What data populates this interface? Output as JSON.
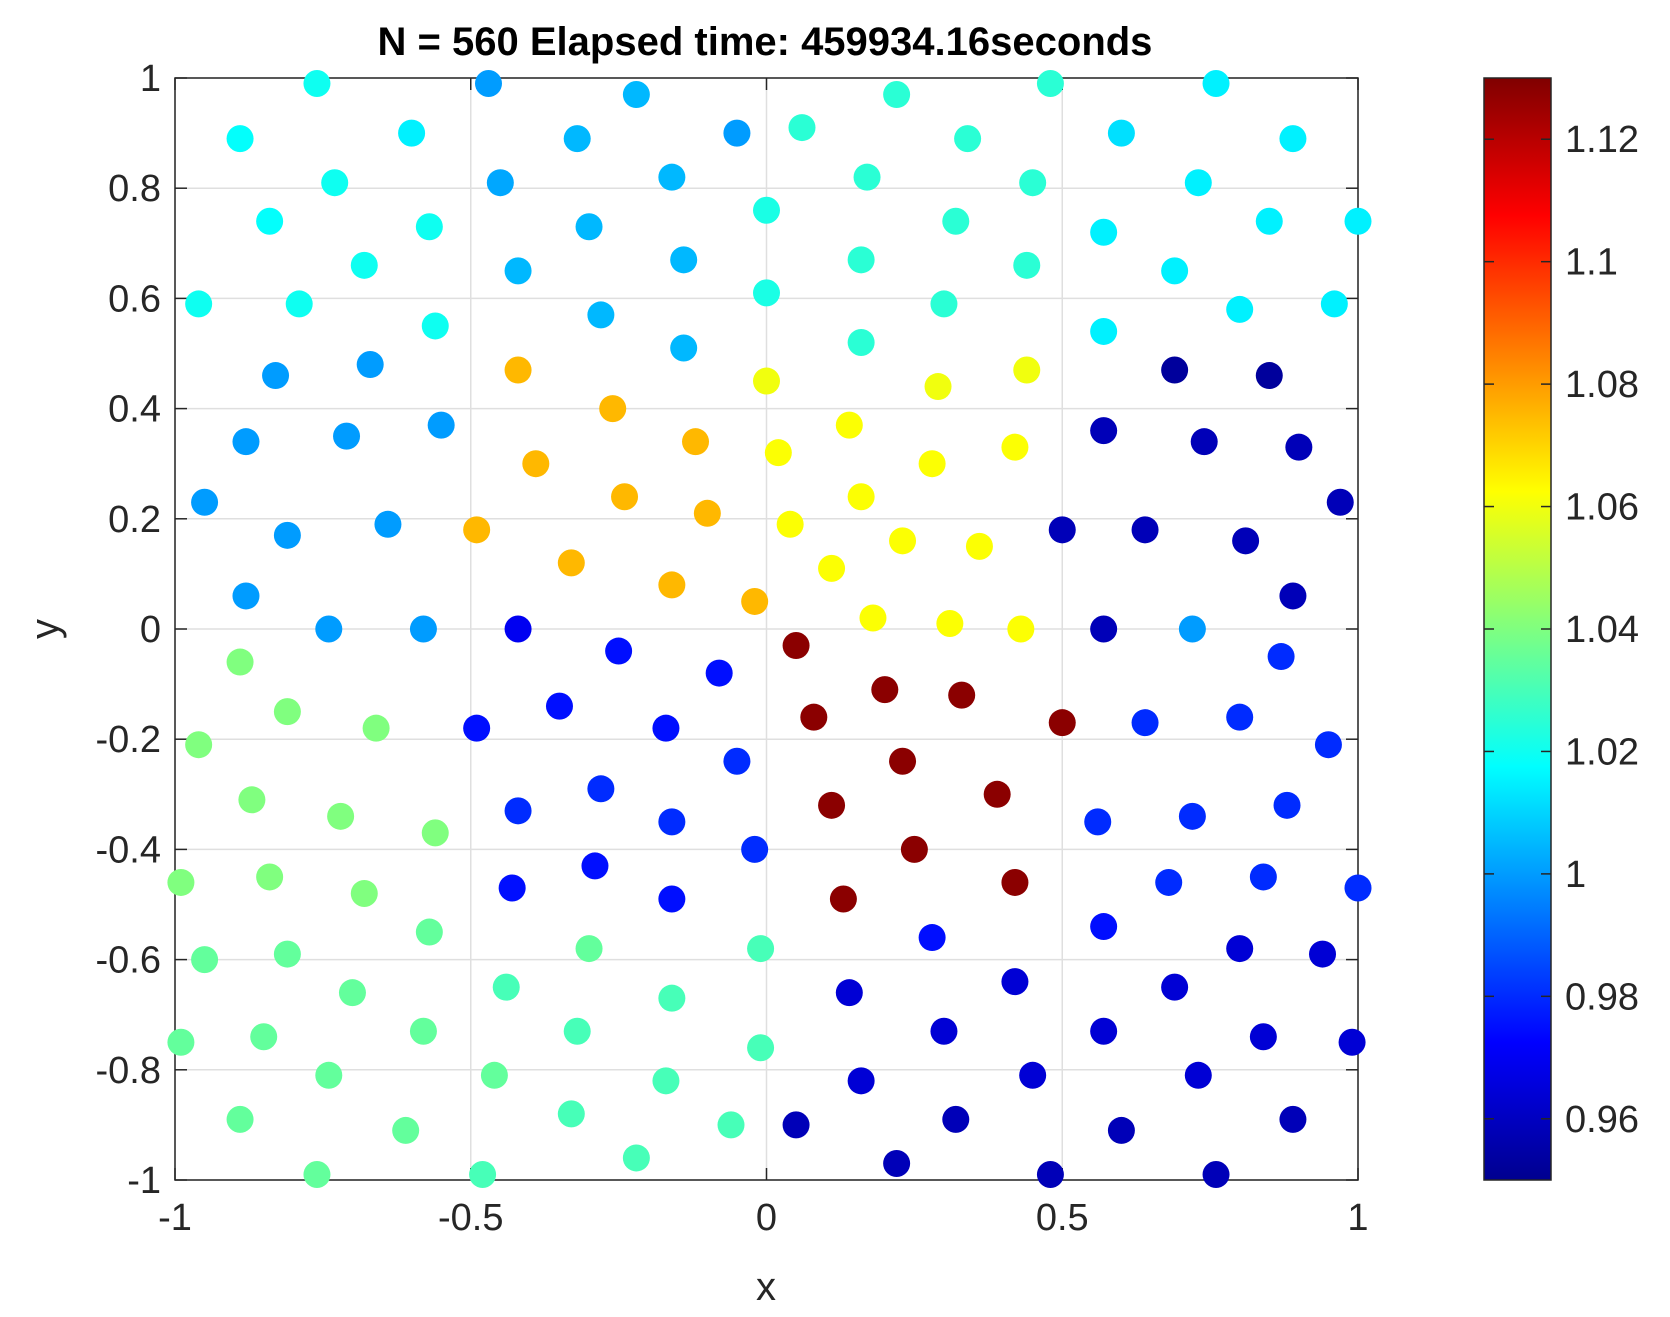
{
  "chart_data": {
    "type": "scatter",
    "title": "N = 560 Elapsed time: 459934.16seconds",
    "xlabel": "x",
    "ylabel": "y",
    "xlim": [
      -1,
      1
    ],
    "ylim": [
      -1,
      1
    ],
    "xticks": [
      "-1",
      "-0.5",
      "0",
      "0.5",
      "1"
    ],
    "yticks": [
      "-1",
      "-0.8",
      "-0.6",
      "-0.4",
      "-0.2",
      "0",
      "0.2",
      "0.4",
      "0.6",
      "0.8",
      "1"
    ],
    "grid": true,
    "colormap": "jet",
    "colorbar": {
      "range": [
        0.95,
        1.13
      ],
      "ticks": [
        "0.96",
        "0.98",
        "1",
        "1.02",
        "1.04",
        "1.06",
        "1.08",
        "1.1",
        "1.12"
      ]
    },
    "points": [
      {
        "x": -0.76,
        "y": 0.99,
        "c": 1.02
      },
      {
        "x": -0.47,
        "y": 0.99,
        "c": 1.0
      },
      {
        "x": -0.22,
        "y": 0.97,
        "c": 1.005
      },
      {
        "x": 0.22,
        "y": 0.97,
        "c": 1.025
      },
      {
        "x": 0.48,
        "y": 0.99,
        "c": 1.025
      },
      {
        "x": 0.76,
        "y": 0.99,
        "c": 1.015
      },
      {
        "x": -0.89,
        "y": 0.89,
        "c": 1.018
      },
      {
        "x": -0.6,
        "y": 0.9,
        "c": 1.015
      },
      {
        "x": -0.32,
        "y": 0.89,
        "c": 1.005
      },
      {
        "x": -0.05,
        "y": 0.9,
        "c": 1.0
      },
      {
        "x": 0.06,
        "y": 0.91,
        "c": 1.025
      },
      {
        "x": 0.34,
        "y": 0.89,
        "c": 1.025
      },
      {
        "x": 0.6,
        "y": 0.9,
        "c": 1.012
      },
      {
        "x": 0.89,
        "y": 0.89,
        "c": 1.015
      },
      {
        "x": -0.73,
        "y": 0.81,
        "c": 1.02
      },
      {
        "x": -0.45,
        "y": 0.81,
        "c": 1.002
      },
      {
        "x": -0.16,
        "y": 0.82,
        "c": 1.005
      },
      {
        "x": 0.17,
        "y": 0.82,
        "c": 1.025
      },
      {
        "x": 0.45,
        "y": 0.81,
        "c": 1.025
      },
      {
        "x": 0.73,
        "y": 0.81,
        "c": 1.015
      },
      {
        "x": -0.84,
        "y": 0.74,
        "c": 1.018
      },
      {
        "x": -0.57,
        "y": 0.73,
        "c": 1.02
      },
      {
        "x": -0.3,
        "y": 0.73,
        "c": 1.005
      },
      {
        "x": 0.0,
        "y": 0.76,
        "c": 1.022
      },
      {
        "x": 0.32,
        "y": 0.74,
        "c": 1.025
      },
      {
        "x": 0.57,
        "y": 0.72,
        "c": 1.015
      },
      {
        "x": 0.85,
        "y": 0.74,
        "c": 1.015
      },
      {
        "x": 1.0,
        "y": 0.74,
        "c": 1.015
      },
      {
        "x": -0.68,
        "y": 0.66,
        "c": 1.02
      },
      {
        "x": -0.42,
        "y": 0.65,
        "c": 1.005
      },
      {
        "x": -0.14,
        "y": 0.67,
        "c": 1.005
      },
      {
        "x": 0.16,
        "y": 0.67,
        "c": 1.025
      },
      {
        "x": 0.44,
        "y": 0.66,
        "c": 1.025
      },
      {
        "x": 0.69,
        "y": 0.65,
        "c": 1.015
      },
      {
        "x": -0.96,
        "y": 0.59,
        "c": 1.02
      },
      {
        "x": -0.79,
        "y": 0.59,
        "c": 1.02
      },
      {
        "x": -0.56,
        "y": 0.55,
        "c": 1.02
      },
      {
        "x": -0.28,
        "y": 0.57,
        "c": 1.005
      },
      {
        "x": 0.0,
        "y": 0.61,
        "c": 1.022
      },
      {
        "x": 0.3,
        "y": 0.59,
        "c": 1.025
      },
      {
        "x": 0.8,
        "y": 0.58,
        "c": 1.015
      },
      {
        "x": 0.96,
        "y": 0.59,
        "c": 1.015
      },
      {
        "x": 0.57,
        "y": 0.54,
        "c": 1.015
      },
      {
        "x": -0.14,
        "y": 0.51,
        "c": 1.005
      },
      {
        "x": 0.16,
        "y": 0.52,
        "c": 1.025
      },
      {
        "x": -0.83,
        "y": 0.46,
        "c": 1.0
      },
      {
        "x": -0.67,
        "y": 0.48,
        "c": 1.0
      },
      {
        "x": -0.42,
        "y": 0.47,
        "c": 1.075
      },
      {
        "x": 0.0,
        "y": 0.45,
        "c": 1.06
      },
      {
        "x": 0.29,
        "y": 0.44,
        "c": 1.06
      },
      {
        "x": 0.44,
        "y": 0.47,
        "c": 1.06
      },
      {
        "x": 0.69,
        "y": 0.47,
        "c": 0.955
      },
      {
        "x": 0.85,
        "y": 0.46,
        "c": 0.955
      },
      {
        "x": -0.26,
        "y": 0.4,
        "c": 1.075
      },
      {
        "x": 0.14,
        "y": 0.37,
        "c": 1.062
      },
      {
        "x": -0.88,
        "y": 0.34,
        "c": 1.0
      },
      {
        "x": -0.71,
        "y": 0.35,
        "c": 1.0
      },
      {
        "x": -0.55,
        "y": 0.37,
        "c": 1.0
      },
      {
        "x": -0.12,
        "y": 0.34,
        "c": 1.075
      },
      {
        "x": 0.02,
        "y": 0.32,
        "c": 1.062
      },
      {
        "x": 0.42,
        "y": 0.33,
        "c": 1.062
      },
      {
        "x": 0.57,
        "y": 0.36,
        "c": 0.96
      },
      {
        "x": 0.74,
        "y": 0.34,
        "c": 0.96
      },
      {
        "x": 0.9,
        "y": 0.33,
        "c": 0.96
      },
      {
        "x": -0.39,
        "y": 0.3,
        "c": 1.075
      },
      {
        "x": 0.28,
        "y": 0.3,
        "c": 1.062
      },
      {
        "x": -0.95,
        "y": 0.23,
        "c": 1.0
      },
      {
        "x": -0.81,
        "y": 0.17,
        "c": 1.0
      },
      {
        "x": -0.64,
        "y": 0.19,
        "c": 1.0
      },
      {
        "x": -0.24,
        "y": 0.24,
        "c": 1.075
      },
      {
        "x": -0.1,
        "y": 0.21,
        "c": 1.075
      },
      {
        "x": 0.16,
        "y": 0.24,
        "c": 1.062
      },
      {
        "x": 0.97,
        "y": 0.23,
        "c": 0.96
      },
      {
        "x": -0.49,
        "y": 0.18,
        "c": 1.075
      },
      {
        "x": 0.04,
        "y": 0.19,
        "c": 1.062
      },
      {
        "x": 0.5,
        "y": 0.18,
        "c": 0.96
      },
      {
        "x": 0.64,
        "y": 0.18,
        "c": 0.96
      },
      {
        "x": 0.81,
        "y": 0.16,
        "c": 0.96
      },
      {
        "x": 0.23,
        "y": 0.16,
        "c": 1.062
      },
      {
        "x": 0.36,
        "y": 0.15,
        "c": 1.062
      },
      {
        "x": -0.33,
        "y": 0.12,
        "c": 1.075
      },
      {
        "x": 0.11,
        "y": 0.11,
        "c": 1.062
      },
      {
        "x": -0.16,
        "y": 0.08,
        "c": 1.075
      },
      {
        "x": -0.88,
        "y": 0.06,
        "c": 1.0
      },
      {
        "x": -0.02,
        "y": 0.05,
        "c": 1.075
      },
      {
        "x": 0.89,
        "y": 0.06,
        "c": 0.96
      },
      {
        "x": 0.18,
        "y": 0.02,
        "c": 1.062
      },
      {
        "x": 0.31,
        "y": 0.01,
        "c": 1.062
      },
      {
        "x": 0.43,
        "y": 0.0,
        "c": 1.062
      },
      {
        "x": -0.74,
        "y": 0.0,
        "c": 1.0
      },
      {
        "x": -0.58,
        "y": 0.0,
        "c": 1.0
      },
      {
        "x": -0.42,
        "y": 0.0,
        "c": 0.97
      },
      {
        "x": 0.57,
        "y": 0.0,
        "c": 0.96
      },
      {
        "x": 0.72,
        "y": 0.0,
        "c": 1.0
      },
      {
        "x": 0.05,
        "y": -0.03,
        "c": 1.128
      },
      {
        "x": -0.25,
        "y": -0.04,
        "c": 0.975
      },
      {
        "x": -0.89,
        "y": -0.06,
        "c": 1.04
      },
      {
        "x": 0.87,
        "y": -0.05,
        "c": 0.98
      },
      {
        "x": -0.08,
        "y": -0.08,
        "c": 0.975
      },
      {
        "x": 0.2,
        "y": -0.11,
        "c": 1.128
      },
      {
        "x": 0.33,
        "y": -0.12,
        "c": 1.128
      },
      {
        "x": -0.35,
        "y": -0.14,
        "c": 0.975
      },
      {
        "x": -0.81,
        "y": -0.15,
        "c": 1.04
      },
      {
        "x": 0.08,
        "y": -0.16,
        "c": 1.128
      },
      {
        "x": 0.64,
        "y": -0.17,
        "c": 0.98
      },
      {
        "x": 0.8,
        "y": -0.16,
        "c": 0.98
      },
      {
        "x": -0.17,
        "y": -0.18,
        "c": 0.975
      },
      {
        "x": -0.66,
        "y": -0.18,
        "c": 1.04
      },
      {
        "x": -0.49,
        "y": -0.18,
        "c": 0.975
      },
      {
        "x": 0.5,
        "y": -0.17,
        "c": 1.128
      },
      {
        "x": -0.96,
        "y": -0.21,
        "c": 1.04
      },
      {
        "x": 0.95,
        "y": -0.21,
        "c": 0.98
      },
      {
        "x": -0.05,
        "y": -0.24,
        "c": 0.98
      },
      {
        "x": 0.23,
        "y": -0.24,
        "c": 1.128
      },
      {
        "x": -0.28,
        "y": -0.29,
        "c": 0.98
      },
      {
        "x": 0.39,
        "y": -0.3,
        "c": 1.128
      },
      {
        "x": -0.87,
        "y": -0.31,
        "c": 1.04
      },
      {
        "x": 0.11,
        "y": -0.32,
        "c": 1.128
      },
      {
        "x": -0.42,
        "y": -0.33,
        "c": 0.98
      },
      {
        "x": 0.72,
        "y": -0.34,
        "c": 0.98
      },
      {
        "x": 0.88,
        "y": -0.32,
        "c": 0.98
      },
      {
        "x": -0.72,
        "y": -0.34,
        "c": 1.04
      },
      {
        "x": -0.16,
        "y": -0.35,
        "c": 0.98
      },
      {
        "x": 0.56,
        "y": -0.35,
        "c": 0.98
      },
      {
        "x": -0.56,
        "y": -0.37,
        "c": 1.04
      },
      {
        "x": 0.25,
        "y": -0.4,
        "c": 1.128
      },
      {
        "x": -0.02,
        "y": -0.4,
        "c": 0.98
      },
      {
        "x": -0.29,
        "y": -0.43,
        "c": 0.975
      },
      {
        "x": -0.84,
        "y": -0.45,
        "c": 1.04
      },
      {
        "x": 0.42,
        "y": -0.46,
        "c": 1.128
      },
      {
        "x": 0.84,
        "y": -0.45,
        "c": 0.98
      },
      {
        "x": -0.99,
        "y": -0.46,
        "c": 1.04
      },
      {
        "x": 0.68,
        "y": -0.46,
        "c": 0.98
      },
      {
        "x": 1.0,
        "y": -0.47,
        "c": 0.98
      },
      {
        "x": -0.43,
        "y": -0.47,
        "c": 0.975
      },
      {
        "x": -0.68,
        "y": -0.48,
        "c": 1.04
      },
      {
        "x": 0.13,
        "y": -0.49,
        "c": 1.128
      },
      {
        "x": -0.16,
        "y": -0.49,
        "c": 0.975
      },
      {
        "x": 0.57,
        "y": -0.54,
        "c": 0.975
      },
      {
        "x": -0.57,
        "y": -0.55,
        "c": 1.035
      },
      {
        "x": 0.28,
        "y": -0.56,
        "c": 0.975
      },
      {
        "x": 0.8,
        "y": -0.58,
        "c": 0.965
      },
      {
        "x": -0.3,
        "y": -0.58,
        "c": 1.035
      },
      {
        "x": -0.81,
        "y": -0.59,
        "c": 1.035
      },
      {
        "x": -0.01,
        "y": -0.58,
        "c": 1.03
      },
      {
        "x": -0.95,
        "y": -0.6,
        "c": 1.035
      },
      {
        "x": 0.94,
        "y": -0.59,
        "c": 0.965
      },
      {
        "x": 0.42,
        "y": -0.64,
        "c": 0.965
      },
      {
        "x": 0.69,
        "y": -0.65,
        "c": 0.965
      },
      {
        "x": -0.44,
        "y": -0.65,
        "c": 1.03
      },
      {
        "x": 0.14,
        "y": -0.66,
        "c": 0.965
      },
      {
        "x": -0.7,
        "y": -0.66,
        "c": 1.035
      },
      {
        "x": -0.16,
        "y": -0.67,
        "c": 1.03
      },
      {
        "x": 0.57,
        "y": -0.73,
        "c": 0.965
      },
      {
        "x": -0.58,
        "y": -0.73,
        "c": 1.035
      },
      {
        "x": 0.3,
        "y": -0.73,
        "c": 0.965
      },
      {
        "x": -0.32,
        "y": -0.73,
        "c": 1.03
      },
      {
        "x": 0.84,
        "y": -0.74,
        "c": 0.965
      },
      {
        "x": -0.85,
        "y": -0.74,
        "c": 1.035
      },
      {
        "x": -0.99,
        "y": -0.75,
        "c": 1.035
      },
      {
        "x": 0.99,
        "y": -0.75,
        "c": 0.965
      },
      {
        "x": -0.01,
        "y": -0.76,
        "c": 1.03
      },
      {
        "x": 0.45,
        "y": -0.81,
        "c": 0.965
      },
      {
        "x": -0.46,
        "y": -0.81,
        "c": 1.035
      },
      {
        "x": 0.73,
        "y": -0.81,
        "c": 0.965
      },
      {
        "x": -0.74,
        "y": -0.81,
        "c": 1.035
      },
      {
        "x": -0.17,
        "y": -0.82,
        "c": 1.03
      },
      {
        "x": 0.16,
        "y": -0.82,
        "c": 0.965
      },
      {
        "x": -0.33,
        "y": -0.88,
        "c": 1.03
      },
      {
        "x": 0.89,
        "y": -0.89,
        "c": 0.96
      },
      {
        "x": -0.89,
        "y": -0.89,
        "c": 1.035
      },
      {
        "x": 0.32,
        "y": -0.89,
        "c": 0.96
      },
      {
        "x": -0.06,
        "y": -0.9,
        "c": 1.03
      },
      {
        "x": 0.05,
        "y": -0.9,
        "c": 0.96
      },
      {
        "x": -0.61,
        "y": -0.91,
        "c": 1.035
      },
      {
        "x": 0.6,
        "y": -0.91,
        "c": 0.96
      },
      {
        "x": -0.22,
        "y": -0.96,
        "c": 1.03
      },
      {
        "x": 0.22,
        "y": -0.97,
        "c": 0.96
      },
      {
        "x": -0.76,
        "y": -0.99,
        "c": 1.035
      },
      {
        "x": -0.48,
        "y": -0.99,
        "c": 1.03
      },
      {
        "x": 0.48,
        "y": -0.99,
        "c": 0.96
      },
      {
        "x": 0.76,
        "y": -0.99,
        "c": 0.96
      }
    ]
  }
}
